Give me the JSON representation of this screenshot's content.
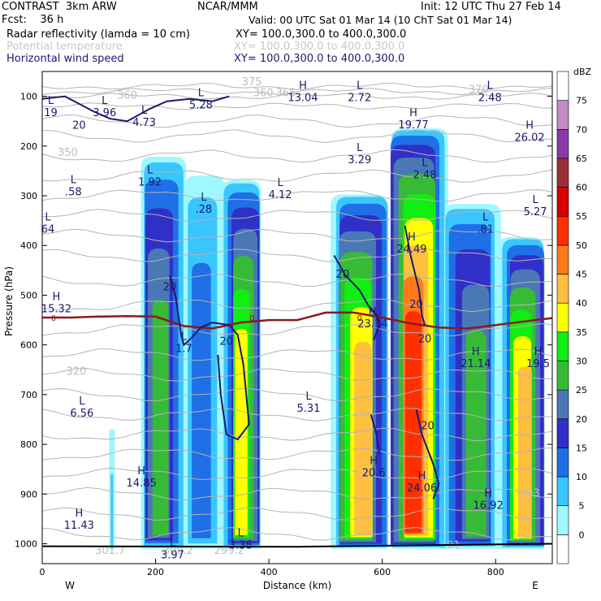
{
  "header": {
    "model": "CONTRAST  3km ARW",
    "center": "NCAR/MMM",
    "init": "Init: 12 UTC Thu 27 Feb 14",
    "fcst": "Fcst:    36 h",
    "valid": "Valid: 00 UTC Sat 01 Mar 14 (10 ChT Sat 01 Mar 14)",
    "fields": [
      {
        "name": "Radar reflectivity (lamda = 10 cm)",
        "xy": "XY= 100.0,300.0 to 400.0,300.0",
        "color": "#000000"
      },
      {
        "name": "Potential temperature",
        "xy": "XY= 100.0,300.0 to 400.0,300.0",
        "color": "#c8c8c8"
      },
      {
        "name": "Horizontal wind speed",
        "xy": "XY= 100.0,300.0 to 400.0,300.0",
        "color": "#1a1a6e"
      }
    ]
  },
  "chart_data": {
    "type": "heatmap",
    "xlabel": "Distance (km)",
    "ylabel": "Pressure (hPa)",
    "xlim": [
      0,
      900
    ],
    "ylim": [
      1040,
      50
    ],
    "xticks": [
      0,
      200,
      400,
      600,
      800
    ],
    "yticks": [
      100,
      200,
      300,
      400,
      500,
      600,
      700,
      800,
      900,
      1000
    ],
    "x_endpoints": {
      "left": "W",
      "right": "E"
    },
    "colorbar": {
      "unit": "dBZ",
      "levels": [
        0,
        5,
        10,
        15,
        20,
        25,
        30,
        35,
        40,
        45,
        50,
        55,
        60,
        65,
        70,
        75
      ],
      "colors": [
        "#ffffff",
        "#9ff8ff",
        "#39c6ff",
        "#1f6fe6",
        "#3030c8",
        "#4a78b4",
        "#37bb37",
        "#11ee11",
        "#ffff00",
        "#ffbf3f",
        "#ff7a1a",
        "#ff3000",
        "#d80000",
        "#9b2f38",
        "#8a3aa6",
        "#c38ac4"
      ]
    },
    "cells": [
      {
        "x": [
          170,
          250
        ],
        "p": [
          180,
          1010
        ],
        "max_dbz": 30
      },
      {
        "x": [
          250,
          320
        ],
        "p": [
          220,
          1010
        ],
        "max_dbz": 15
      },
      {
        "x": [
          320,
          390
        ],
        "p": [
          230,
          1010
        ],
        "max_dbz": 40
      },
      {
        "x": [
          510,
          610
        ],
        "p": [
          260,
          1010
        ],
        "max_dbz": 45
      },
      {
        "x": [
          610,
          710
        ],
        "p": [
          120,
          1010
        ],
        "max_dbz": 55
      },
      {
        "x": [
          710,
          810
        ],
        "p": [
          280,
          1010
        ],
        "max_dbz": 30
      },
      {
        "x": [
          810,
          890
        ],
        "p": [
          350,
          1010
        ],
        "max_dbz": 45
      }
    ],
    "freezing_level": {
      "label": "0",
      "x": [
        0,
        50,
        100,
        150,
        200,
        250,
        300,
        350,
        400,
        450,
        500,
        550,
        600,
        650,
        700,
        750,
        800,
        850,
        900
      ],
      "p": [
        545,
        545,
        543,
        542,
        543,
        562,
        567,
        555,
        550,
        550,
        535,
        535,
        545,
        557,
        565,
        567,
        560,
        553,
        546
      ]
    },
    "theta_labels": [
      {
        "text": "375",
        "x": 370,
        "p": 78
      },
      {
        "text": "360",
        "x": 390,
        "p": 100
      },
      {
        "text": "365",
        "x": 430,
        "p": 100
      },
      {
        "text": "360",
        "x": 150,
        "p": 105
      },
      {
        "text": "370",
        "x": 770,
        "p": 93
      },
      {
        "text": "350",
        "x": 45,
        "p": 220
      },
      {
        "text": "320",
        "x": 60,
        "p": 660
      },
      {
        "text": "303",
        "x": 860,
        "p": 905
      },
      {
        "text": "301.7",
        "x": 120,
        "p": 1020
      },
      {
        "text": "300.2",
        "x": 240,
        "p": 1020
      },
      {
        "text": "299.2",
        "x": 330,
        "p": 1020
      },
      {
        "text": "301",
        "x": 720,
        "p": 1010
      }
    ],
    "wind_labels": [
      {
        "text": "20",
        "x": 65,
        "p": 165
      },
      {
        "text": "20",
        "x": 225,
        "p": 490
      },
      {
        "text": "20",
        "x": 325,
        "p": 600
      },
      {
        "text": "20",
        "x": 530,
        "p": 465
      },
      {
        "text": "20",
        "x": 660,
        "p": 525
      },
      {
        "text": "20",
        "x": 675,
        "p": 595
      },
      {
        "text": "20",
        "x": 680,
        "p": 770
      }
    ],
    "extrema": [
      {
        "type": "L",
        "value": "19",
        "x": 15,
        "p": 115
      },
      {
        "type": "L",
        "value": "3.96",
        "x": 110,
        "p": 115
      },
      {
        "type": "L",
        "value": "4.73",
        "x": 180,
        "p": 135
      },
      {
        "type": "L",
        "value": "5.28",
        "x": 280,
        "p": 100
      },
      {
        "type": "H",
        "value": "13.04",
        "x": 460,
        "p": 85
      },
      {
        "type": "L",
        "value": "2.72",
        "x": 560,
        "p": 85
      },
      {
        "type": "H",
        "value": "19.77",
        "x": 655,
        "p": 140
      },
      {
        "type": "L",
        "value": "2.48",
        "x": 790,
        "p": 85
      },
      {
        "type": "H",
        "value": "26.02",
        "x": 860,
        "p": 165
      },
      {
        "type": "L",
        "value": "3.29",
        "x": 560,
        "p": 210
      },
      {
        "type": "L",
        "value": "2.48",
        "x": 675,
        "p": 240
      },
      {
        "type": "L",
        "value": "1.92",
        "x": 190,
        "p": 255
      },
      {
        "type": "L",
        "value": ".58",
        "x": 55,
        "p": 275
      },
      {
        "type": "L",
        "value": ".28",
        "x": 285,
        "p": 310
      },
      {
        "type": "L",
        "value": "4.12",
        "x": 420,
        "p": 280
      },
      {
        "type": "L",
        "value": "5.27",
        "x": 870,
        "p": 315
      },
      {
        "type": "L",
        "value": "64",
        "x": 10,
        "p": 350
      },
      {
        "type": "L",
        "value": ".81",
        "x": 782,
        "p": 350
      },
      {
        "type": "H",
        "value": "24.49",
        "x": 652,
        "p": 390
      },
      {
        "type": "H",
        "value": "15.32",
        "x": 25,
        "p": 510
      },
      {
        "type": "H",
        "value": "23.34",
        "x": 583,
        "p": 540
      },
      {
        "type": "L",
        "value": "1.7",
        "x": 250,
        "p": 590
      },
      {
        "type": "H",
        "value": "21.14",
        "x": 765,
        "p": 620
      },
      {
        "type": "H",
        "value": "19.5",
        "x": 875,
        "p": 620
      },
      {
        "type": "L",
        "value": "6.56",
        "x": 70,
        "p": 720
      },
      {
        "type": "L",
        "value": "5.31",
        "x": 470,
        "p": 710
      },
      {
        "type": "H",
        "value": "20.6",
        "x": 585,
        "p": 840
      },
      {
        "type": "H",
        "value": "24.06",
        "x": 670,
        "p": 870
      },
      {
        "type": "H",
        "value": "14.85",
        "x": 175,
        "p": 860
      },
      {
        "type": "H",
        "value": "16.92",
        "x": 787,
        "p": 905
      },
      {
        "type": "H",
        "value": "11.43",
        "x": 65,
        "p": 945
      },
      {
        "type": "L",
        "value": "3.97",
        "x": 230,
        "p": 1005
      },
      {
        "type": "L",
        "value": "3.38",
        "x": 350,
        "p": 985
      }
    ]
  }
}
